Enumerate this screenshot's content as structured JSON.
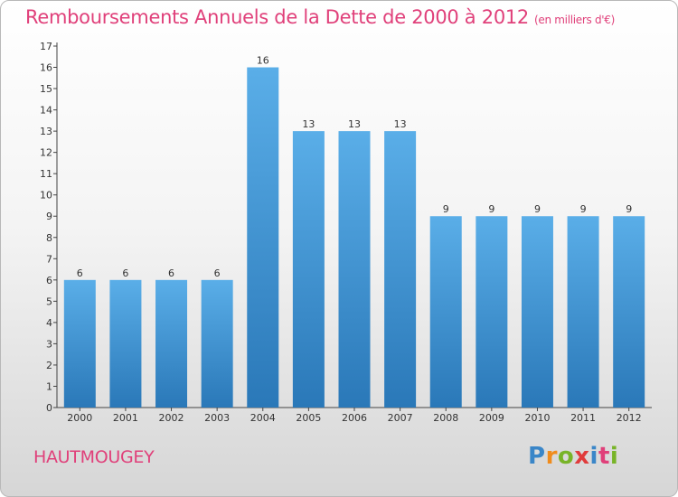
{
  "header": {
    "title": "Remboursements Annuels de la Dette de 2000 à 2012",
    "unit": "(en milliers d'€)"
  },
  "footer": {
    "commune": "HAUTMOUGEY",
    "brand": "Proxiti"
  },
  "colors": {
    "title": "#e0407a",
    "bar_top": "#5aaee8",
    "bar_bottom": "#2a78b8"
  },
  "chart_data": {
    "type": "bar",
    "title": "Remboursements Annuels de la Dette de 2000 à 2012",
    "xlabel": "",
    "ylabel": "",
    "categories": [
      "2000",
      "2001",
      "2002",
      "2003",
      "2004",
      "2005",
      "2006",
      "2007",
      "2008",
      "2009",
      "2010",
      "2011",
      "2012"
    ],
    "values": [
      6,
      6,
      6,
      6,
      16,
      13,
      13,
      13,
      9,
      9,
      9,
      9,
      9
    ],
    "data_labels": [
      "6",
      "6",
      "6",
      "6",
      "16",
      "13",
      "13",
      "13",
      "9",
      "9",
      "9",
      "9",
      "9"
    ],
    "y_ticks": [
      "0",
      "1",
      "2",
      "3",
      "4",
      "5",
      "6",
      "7",
      "8",
      "9",
      "10",
      "11",
      "12",
      "13",
      "14",
      "15",
      "16",
      "17"
    ],
    "ylim": [
      0,
      17
    ],
    "grid": false
  }
}
